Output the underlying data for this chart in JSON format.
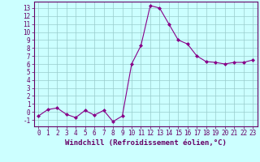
{
  "x": [
    0,
    1,
    2,
    3,
    4,
    5,
    6,
    7,
    8,
    9,
    10,
    11,
    12,
    13,
    14,
    15,
    16,
    17,
    18,
    19,
    20,
    21,
    22,
    23
  ],
  "y": [
    -0.5,
    0.3,
    0.5,
    -0.3,
    -0.7,
    0.2,
    -0.4,
    0.2,
    -1.2,
    -0.5,
    6.0,
    8.3,
    13.3,
    13.0,
    11.0,
    9.0,
    8.5,
    7.0,
    6.3,
    6.2,
    6.0,
    6.2,
    6.2,
    6.5
  ],
  "line_color": "#880088",
  "marker": "D",
  "marker_size": 2.0,
  "bg_color": "#ccffff",
  "grid_color": "#99cccc",
  "xlabel": "Windchill (Refroidissement éolien,°C)",
  "xlabel_fontsize": 6.5,
  "yticks": [
    -1,
    0,
    1,
    2,
    3,
    4,
    5,
    6,
    7,
    8,
    9,
    10,
    11,
    12,
    13
  ],
  "xlim": [
    -0.5,
    23.5
  ],
  "ylim": [
    -1.8,
    13.8
  ],
  "tick_fontsize": 5.5,
  "spine_color": "#660066",
  "label_color": "#660066"
}
